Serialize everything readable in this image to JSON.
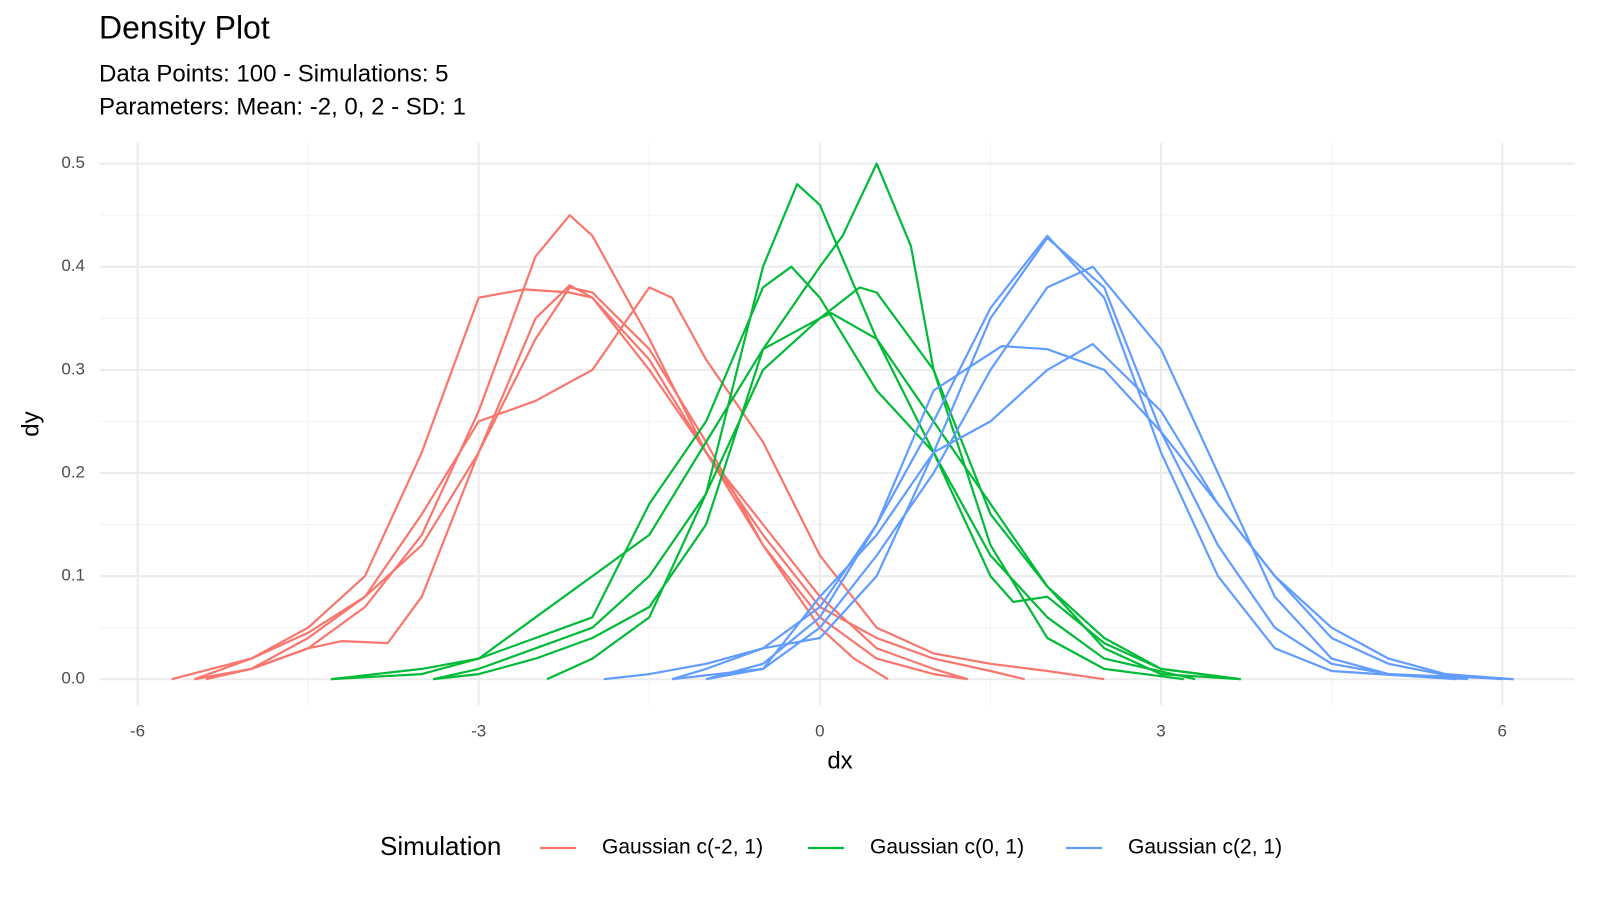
{
  "chart_data": {
    "type": "density",
    "title": "Density Plot",
    "subtitle": [
      "Data Points: 100 - Simulations: 5",
      "Parameters: Mean: -2, 0, 2 - SD: 1"
    ],
    "x_label": "dx",
    "y_label": "dy",
    "legend_title": "Simulation",
    "legend": "bottom",
    "xlim": [
      -6.33,
      6.64
    ],
    "ylim": [
      -0.025,
      0.52
    ],
    "xticks": [
      -6,
      -3,
      0,
      3,
      6
    ],
    "yticks": [
      {
        "value": 0,
        "label": "0.0"
      },
      0.1,
      0.2,
      0.3,
      0.4,
      0.5
    ],
    "grid": true,
    "minor_grid": true,
    "groups": [
      {
        "name": "Gaussian c(-2, 1)",
        "color": "#F8766D",
        "curves": [
          {
            "x": [
              -5.5,
              -5,
              -4.5,
              -4,
              -3.5,
              -3,
              -2.5,
              -2.2,
              -2,
              -1.5,
              -1,
              -0.5,
              0,
              0.5,
              1,
              1.3
            ],
            "y": [
              0,
              0.01,
              0.03,
              0.07,
              0.14,
              0.26,
              0.41,
              0.45,
              0.43,
              0.33,
              0.22,
              0.13,
              0.06,
              0.02,
              0.005,
              0
            ]
          },
          {
            "x": [
              -5.7,
              -5,
              -4.5,
              -4,
              -3.5,
              -3,
              -2.5,
              -2.2,
              -2,
              -1.5,
              -1,
              -0.5,
              0,
              0.3,
              0.6
            ],
            "y": [
              0,
              0.02,
              0.045,
              0.08,
              0.13,
              0.22,
              0.33,
              0.38,
              0.375,
              0.32,
              0.23,
              0.13,
              0.05,
              0.02,
              0
            ]
          },
          {
            "x": [
              -5.5,
              -5,
              -4.5,
              -4,
              -3.5,
              -3,
              -2.6,
              -2.2,
              -2,
              -1.5,
              -1,
              -0.5,
              0,
              0.5,
              1,
              1.5,
              1.8
            ],
            "y": [
              0,
              0.02,
              0.05,
              0.1,
              0.22,
              0.37,
              0.378,
              0.375,
              0.37,
              0.31,
              0.22,
              0.14,
              0.07,
              0.04,
              0.02,
              0.008,
              0
            ]
          },
          {
            "x": [
              -5.4,
              -5,
              -4.5,
              -4,
              -3.5,
              -3,
              -2.5,
              -2,
              -1.5,
              -1.3,
              -1,
              -0.5,
              0,
              0.5,
              1,
              1.5,
              2,
              2.5
            ],
            "y": [
              0,
              0.01,
              0.04,
              0.08,
              0.16,
              0.25,
              0.27,
              0.3,
              0.38,
              0.37,
              0.31,
              0.23,
              0.12,
              0.05,
              0.025,
              0.015,
              0.008,
              0
            ]
          },
          {
            "x": [
              -5.5,
              -5,
              -4.5,
              -4.2,
              -3.8,
              -3.5,
              -3,
              -2.5,
              -2.2,
              -2,
              -1.5,
              -1,
              -0.5,
              0,
              0.5,
              1,
              1.3
            ],
            "y": [
              0,
              0.01,
              0.03,
              0.037,
              0.035,
              0.08,
              0.22,
              0.35,
              0.382,
              0.37,
              0.3,
              0.22,
              0.15,
              0.08,
              0.03,
              0.01,
              0
            ]
          }
        ]
      },
      {
        "name": "Gaussian c(0, 1)",
        "color": "#00BA38",
        "curves": [
          {
            "x": [
              -3.4,
              -3,
              -2.5,
              -2,
              -1.5,
              -1,
              -0.5,
              0,
              0.2,
              0.5,
              0.8,
              1,
              1.5,
              2,
              2.5,
              3.2
            ],
            "y": [
              0,
              0.005,
              0.02,
              0.04,
              0.07,
              0.15,
              0.32,
              0.4,
              0.43,
              0.5,
              0.42,
              0.3,
              0.13,
              0.04,
              0.01,
              0
            ]
          },
          {
            "x": [
              -2.4,
              -2,
              -1.5,
              -1,
              -0.5,
              -0.2,
              0,
              0.5,
              1,
              1.5,
              1.7,
              2,
              2.5,
              3,
              3.7
            ],
            "y": [
              0,
              0.02,
              0.06,
              0.18,
              0.4,
              0.48,
              0.46,
              0.33,
              0.22,
              0.1,
              0.075,
              0.08,
              0.035,
              0.01,
              0
            ]
          },
          {
            "x": [
              -4.3,
              -3.5,
              -3,
              -2.5,
              -2,
              -1.5,
              -1,
              -0.5,
              -0.25,
              0,
              0.5,
              1,
              1.5,
              2,
              2.5,
              3.3
            ],
            "y": [
              0,
              0.005,
              0.02,
              0.04,
              0.06,
              0.17,
              0.25,
              0.38,
              0.4,
              0.37,
              0.28,
              0.22,
              0.12,
              0.06,
              0.02,
              0
            ]
          },
          {
            "x": [
              -4.3,
              -3.5,
              -3,
              -2.5,
              -2,
              -1.5,
              -1,
              -0.5,
              0,
              0.35,
              0.5,
              1,
              1.5,
              2,
              2.5,
              3,
              3.7
            ],
            "y": [
              0,
              0.01,
              0.02,
              0.06,
              0.1,
              0.14,
              0.23,
              0.32,
              0.35,
              0.38,
              0.375,
              0.3,
              0.16,
              0.09,
              0.04,
              0.01,
              0
            ]
          },
          {
            "x": [
              -3.4,
              -3,
              -2.5,
              -2,
              -1.5,
              -1,
              -0.5,
              0,
              0.1,
              0.5,
              1,
              1.5,
              2,
              2.5,
              3,
              3.7
            ],
            "y": [
              0,
              0.01,
              0.03,
              0.05,
              0.1,
              0.18,
              0.3,
              0.35,
              0.355,
              0.33,
              0.25,
              0.17,
              0.09,
              0.03,
              0.005,
              0
            ]
          }
        ]
      },
      {
        "name": "Gaussian c(2, 1)",
        "color": "#619CFF",
        "curves": [
          {
            "x": [
              -1.9,
              -1.5,
              -1,
              -0.5,
              0,
              0.5,
              1,
              1.5,
              2,
              2.5,
              3,
              3.5,
              4,
              4.5,
              5.6
            ],
            "y": [
              0,
              0.005,
              0.015,
              0.03,
              0.07,
              0.15,
              0.25,
              0.36,
              0.43,
              0.37,
              0.22,
              0.1,
              0.03,
              0.008,
              0
            ]
          },
          {
            "x": [
              -1.3,
              -1,
              -0.5,
              0,
              0.5,
              1,
              1.5,
              2,
              2.5,
              3,
              3.5,
              4,
              4.5,
              5,
              5.7
            ],
            "y": [
              0,
              0.01,
              0.03,
              0.04,
              0.1,
              0.22,
              0.35,
              0.428,
              0.38,
              0.24,
              0.13,
              0.05,
              0.015,
              0.005,
              0
            ]
          },
          {
            "x": [
              -1.3,
              -0.5,
              0,
              0.5,
              1,
              1.5,
              2,
              2.4,
              3,
              3.5,
              4,
              4.5,
              5,
              6.1
            ],
            "y": [
              0,
              0.01,
              0.05,
              0.12,
              0.2,
              0.3,
              0.38,
              0.4,
              0.32,
              0.2,
              0.08,
              0.02,
              0.005,
              0
            ]
          },
          {
            "x": [
              -1,
              -0.5,
              0,
              0.5,
              1,
              1.6,
              2,
              2.5,
              3,
              3.5,
              4,
              4.5,
              5,
              5.5,
              6.1
            ],
            "y": [
              0,
              0.015,
              0.06,
              0.15,
              0.28,
              0.323,
              0.32,
              0.3,
              0.24,
              0.17,
              0.1,
              0.05,
              0.02,
              0.005,
              0
            ]
          },
          {
            "x": [
              -1,
              -0.5,
              0,
              0.5,
              1,
              1.5,
              2,
              2.4,
              3,
              3.5,
              4,
              4.5,
              5,
              5.5,
              6
            ],
            "y": [
              0,
              0.01,
              0.08,
              0.14,
              0.22,
              0.25,
              0.3,
              0.325,
              0.26,
              0.17,
              0.1,
              0.04,
              0.015,
              0.004,
              0
            ]
          }
        ]
      }
    ]
  }
}
